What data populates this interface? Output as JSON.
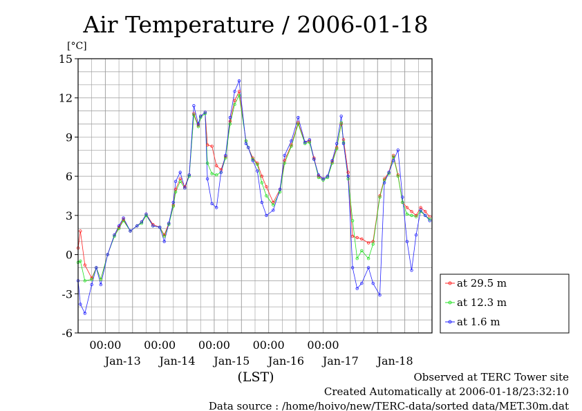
{
  "chart_data": {
    "type": "line",
    "title": "Air Temperature / 2006-01-18",
    "ylabel": "[°C]",
    "xlabel": "(LST)",
    "ylim": [
      -6,
      15
    ],
    "yticks": [
      "15",
      "12",
      "9",
      "6",
      "3",
      "0",
      "-3",
      "-6"
    ],
    "ytick_values": [
      15,
      12,
      9,
      6,
      3,
      0,
      -3,
      -6
    ],
    "x_time_labels": [
      "00:00",
      "00:00",
      "00:00",
      "00:00",
      "00:00"
    ],
    "x_day_labels": [
      "Jan-13",
      "Jan-14",
      "Jan-15",
      "Jan-16",
      "Jan-17",
      "Jan-18"
    ],
    "xlim": [
      "2006-01-12 12:00",
      "2006-01-18 24:00"
    ],
    "grid": true,
    "legend_position": "right",
    "series": [
      {
        "name": "at 29.5 m",
        "color": "#ff2020",
        "x": [
          "2006-01-12 12:00",
          "2006-01-12 13:00",
          "2006-01-12 15:00",
          "2006-01-12 18:00",
          "2006-01-12 20:00",
          "2006-01-12 22:00",
          "2006-01-13 01:00",
          "2006-01-13 04:00",
          "2006-01-13 06:00",
          "2006-01-13 08:00",
          "2006-01-13 11:00",
          "2006-01-13 14:00",
          "2006-01-13 16:00",
          "2006-01-13 18:00",
          "2006-01-13 21:00",
          "2006-01-14 00:00",
          "2006-01-14 02:00",
          "2006-01-14 04:00",
          "2006-01-14 06:00",
          "2006-01-14 07:00",
          "2006-01-14 09:00",
          "2006-01-14 11:00",
          "2006-01-14 13:00",
          "2006-01-14 15:00",
          "2006-01-14 17:00",
          "2006-01-14 18:00",
          "2006-01-14 20:00",
          "2006-01-14 21:00",
          "2006-01-14 23:00",
          "2006-01-15 01:00",
          "2006-01-15 03:00",
          "2006-01-15 05:00",
          "2006-01-15 07:00",
          "2006-01-15 09:00",
          "2006-01-15 11:00",
          "2006-01-15 14:00",
          "2006-01-15 15:00",
          "2006-01-15 17:00",
          "2006-01-15 19:00",
          "2006-01-15 21:00",
          "2006-01-15 23:00",
          "2006-01-16 02:00",
          "2006-01-16 05:00",
          "2006-01-16 07:00",
          "2006-01-16 10:00",
          "2006-01-16 13:00",
          "2006-01-16 16:00",
          "2006-01-16 18:00",
          "2006-01-16 20:00",
          "2006-01-16 22:00",
          "2006-01-17 00:00",
          "2006-01-17 02:00",
          "2006-01-17 04:00",
          "2006-01-17 06:00",
          "2006-01-17 08:00",
          "2006-01-17 09:00",
          "2006-01-17 11:00",
          "2006-01-17 13:00",
          "2006-01-17 15:00",
          "2006-01-17 17:00",
          "2006-01-17 20:00",
          "2006-01-17 22:00",
          "2006-01-18 01:00",
          "2006-01-18 03:00",
          "2006-01-18 05:00",
          "2006-01-18 07:00",
          "2006-01-18 09:00",
          "2006-01-18 11:00",
          "2006-01-18 13:00",
          "2006-01-18 15:00",
          "2006-01-18 17:00",
          "2006-01-18 19:00",
          "2006-01-18 21:00",
          "2006-01-18 23:00"
        ],
        "y": [
          0.5,
          1.8,
          -0.8,
          -1.8,
          -1.0,
          -1.9,
          0.0,
          1.5,
          2.1,
          2.7,
          1.8,
          2.2,
          2.5,
          3.1,
          2.3,
          2.1,
          1.5,
          2.4,
          3.8,
          5.0,
          5.8,
          5.2,
          6.1,
          10.8,
          9.9,
          10.6,
          10.9,
          8.4,
          8.3,
          6.8,
          6.5,
          7.5,
          10.2,
          11.8,
          12.5,
          8.7,
          8.2,
          7.4,
          7.0,
          6.0,
          5.2,
          4.0,
          5.0,
          7.2,
          8.4,
          10.1,
          8.6,
          8.7,
          7.4,
          6.0,
          5.8,
          6.0,
          7.1,
          8.2,
          10.0,
          8.8,
          6.3,
          1.4,
          1.3,
          1.2,
          0.9,
          1.0,
          4.5,
          5.8,
          6.3,
          7.6,
          6.1,
          4.0,
          3.6,
          3.3,
          3.0,
          3.6,
          3.3,
          2.9
        ]
      },
      {
        "name": "at 12.3 m",
        "color": "#20e020",
        "x": [
          "2006-01-12 12:00",
          "2006-01-12 13:00",
          "2006-01-12 15:00",
          "2006-01-12 18:00",
          "2006-01-12 20:00",
          "2006-01-12 22:00",
          "2006-01-13 01:00",
          "2006-01-13 04:00",
          "2006-01-13 06:00",
          "2006-01-13 08:00",
          "2006-01-13 11:00",
          "2006-01-13 14:00",
          "2006-01-13 16:00",
          "2006-01-13 18:00",
          "2006-01-13 21:00",
          "2006-01-14 00:00",
          "2006-01-14 02:00",
          "2006-01-14 04:00",
          "2006-01-14 06:00",
          "2006-01-14 07:00",
          "2006-01-14 09:00",
          "2006-01-14 11:00",
          "2006-01-14 13:00",
          "2006-01-14 15:00",
          "2006-01-14 17:00",
          "2006-01-14 18:00",
          "2006-01-14 20:00",
          "2006-01-14 21:00",
          "2006-01-14 23:00",
          "2006-01-15 01:00",
          "2006-01-15 03:00",
          "2006-01-15 05:00",
          "2006-01-15 07:00",
          "2006-01-15 09:00",
          "2006-01-15 11:00",
          "2006-01-15 14:00",
          "2006-01-15 15:00",
          "2006-01-15 17:00",
          "2006-01-15 19:00",
          "2006-01-15 21:00",
          "2006-01-15 23:00",
          "2006-01-16 02:00",
          "2006-01-16 05:00",
          "2006-01-16 07:00",
          "2006-01-16 10:00",
          "2006-01-16 13:00",
          "2006-01-16 16:00",
          "2006-01-16 18:00",
          "2006-01-16 20:00",
          "2006-01-16 22:00",
          "2006-01-17 00:00",
          "2006-01-17 02:00",
          "2006-01-17 04:00",
          "2006-01-17 06:00",
          "2006-01-17 08:00",
          "2006-01-17 09:00",
          "2006-01-17 11:00",
          "2006-01-17 13:00",
          "2006-01-17 15:00",
          "2006-01-17 17:00",
          "2006-01-17 20:00",
          "2006-01-17 22:00",
          "2006-01-18 01:00",
          "2006-01-18 03:00",
          "2006-01-18 05:00",
          "2006-01-18 07:00",
          "2006-01-18 09:00",
          "2006-01-18 11:00",
          "2006-01-18 13:00",
          "2006-01-18 15:00",
          "2006-01-18 17:00",
          "2006-01-18 19:00",
          "2006-01-18 21:00",
          "2006-01-18 23:00"
        ],
        "y": [
          -0.6,
          -0.5,
          -2.0,
          -1.9,
          -1.0,
          -1.9,
          0.0,
          1.4,
          2.0,
          2.6,
          1.8,
          2.2,
          2.4,
          3.0,
          2.2,
          2.1,
          1.4,
          2.3,
          3.7,
          4.8,
          5.6,
          5.1,
          6.0,
          10.7,
          9.8,
          10.5,
          10.8,
          7.0,
          6.2,
          6.1,
          6.3,
          7.4,
          10.0,
          11.5,
          12.2,
          8.7,
          8.2,
          7.3,
          6.9,
          5.5,
          4.5,
          3.8,
          4.8,
          7.0,
          8.3,
          10.0,
          8.5,
          8.6,
          7.3,
          5.9,
          5.7,
          5.9,
          7.0,
          8.1,
          10.1,
          8.6,
          5.8,
          2.6,
          -0.3,
          0.3,
          -0.3,
          0.8,
          4.4,
          5.7,
          6.2,
          7.5,
          6.0,
          4.0,
          3.1,
          3.0,
          2.9,
          3.3,
          3.0,
          2.7
        ]
      },
      {
        "name": "at 1.6 m",
        "color": "#2020ff",
        "x": [
          "2006-01-12 12:00",
          "2006-01-12 13:00",
          "2006-01-12 15:00",
          "2006-01-12 18:00",
          "2006-01-12 20:00",
          "2006-01-12 22:00",
          "2006-01-13 01:00",
          "2006-01-13 04:00",
          "2006-01-13 06:00",
          "2006-01-13 08:00",
          "2006-01-13 11:00",
          "2006-01-13 14:00",
          "2006-01-13 16:00",
          "2006-01-13 18:00",
          "2006-01-13 21:00",
          "2006-01-14 00:00",
          "2006-01-14 02:00",
          "2006-01-14 04:00",
          "2006-01-14 06:00",
          "2006-01-14 07:00",
          "2006-01-14 09:00",
          "2006-01-14 11:00",
          "2006-01-14 13:00",
          "2006-01-14 15:00",
          "2006-01-14 17:00",
          "2006-01-14 18:00",
          "2006-01-14 20:00",
          "2006-01-14 21:00",
          "2006-01-14 23:00",
          "2006-01-15 01:00",
          "2006-01-15 03:00",
          "2006-01-15 05:00",
          "2006-01-15 07:00",
          "2006-01-15 09:00",
          "2006-01-15 11:00",
          "2006-01-15 14:00",
          "2006-01-15 15:00",
          "2006-01-15 17:00",
          "2006-01-15 19:00",
          "2006-01-15 21:00",
          "2006-01-15 23:00",
          "2006-01-16 02:00",
          "2006-01-16 05:00",
          "2006-01-16 07:00",
          "2006-01-16 10:00",
          "2006-01-16 13:00",
          "2006-01-16 16:00",
          "2006-01-16 18:00",
          "2006-01-16 20:00",
          "2006-01-16 22:00",
          "2006-01-17 00:00",
          "2006-01-17 02:00",
          "2006-01-17 04:00",
          "2006-01-17 06:00",
          "2006-01-17 08:00",
          "2006-01-17 09:00",
          "2006-01-17 11:00",
          "2006-01-17 13:00",
          "2006-01-17 15:00",
          "2006-01-17 17:00",
          "2006-01-17 20:00",
          "2006-01-17 22:00",
          "2006-01-18 01:00",
          "2006-01-18 03:00",
          "2006-01-18 05:00",
          "2006-01-18 07:00",
          "2006-01-18 09:00",
          "2006-01-18 11:00",
          "2006-01-18 13:00",
          "2006-01-18 15:00",
          "2006-01-18 17:00",
          "2006-01-18 19:00",
          "2006-01-18 21:00",
          "2006-01-18 23:00"
        ],
        "y": [
          -2.0,
          -3.8,
          -4.5,
          -2.3,
          -1.0,
          -2.3,
          0.0,
          1.5,
          2.2,
          2.8,
          1.8,
          2.2,
          2.5,
          3.1,
          2.2,
          2.1,
          1.0,
          2.4,
          4.0,
          5.6,
          6.3,
          5.1,
          6.1,
          11.4,
          10.0,
          10.6,
          10.9,
          5.8,
          3.9,
          3.6,
          6.3,
          7.6,
          10.5,
          12.5,
          13.3,
          8.5,
          8.2,
          7.2,
          6.4,
          4.0,
          3.0,
          3.4,
          5.0,
          7.6,
          8.7,
          10.5,
          8.6,
          8.8,
          7.3,
          6.1,
          5.8,
          6.0,
          7.2,
          8.5,
          10.6,
          8.5,
          6.0,
          -1.0,
          -2.6,
          -2.2,
          -1.0,
          -2.2,
          -3.1,
          5.5,
          6.3,
          7.2,
          8.0,
          4.4,
          1.0,
          -1.2,
          1.5,
          3.4,
          3.0,
          2.6
        ]
      }
    ]
  },
  "footer": {
    "line1": "Observed at TERC Tower site",
    "line2": "Created Automatically at 2006-01-18/23:32:10",
    "line3": "Data source : /home/hoivo/new/TERC-data/sorted  data/MET.30m.dat"
  }
}
